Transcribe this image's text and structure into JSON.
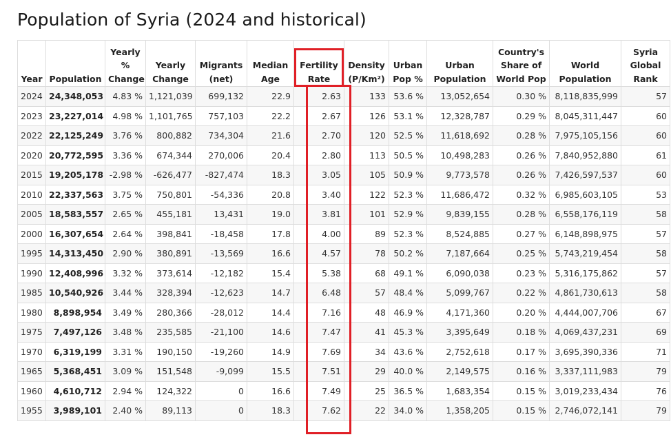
{
  "page": {
    "title": "Population of Syria (2024 and historical)"
  },
  "table": {
    "columns": [
      "Year",
      "Population",
      "Yearly\n%\nChange",
      "Yearly\nChange",
      "Migrants\n(net)",
      "Median\nAge",
      "Fertility\nRate",
      "Density\n(P/Km²)",
      "Urban\nPop %",
      "Urban\nPopulation",
      "Country's\nShare of\nWorld Pop",
      "World\nPopulation",
      "Syria\nGlobal\nRank"
    ],
    "rows": [
      [
        "2024",
        "24,348,053",
        "4.83 %",
        "1,121,039",
        "699,132",
        "22.9",
        "2.63",
        "133",
        "53.6 %",
        "13,052,654",
        "0.30 %",
        "8,118,835,999",
        "57"
      ],
      [
        "2023",
        "23,227,014",
        "4.98 %",
        "1,101,765",
        "757,103",
        "22.2",
        "2.67",
        "126",
        "53.1 %",
        "12,328,787",
        "0.29 %",
        "8,045,311,447",
        "60"
      ],
      [
        "2022",
        "22,125,249",
        "3.76 %",
        "800,882",
        "734,304",
        "21.6",
        "2.70",
        "120",
        "52.5 %",
        "11,618,692",
        "0.28 %",
        "7,975,105,156",
        "60"
      ],
      [
        "2020",
        "20,772,595",
        "3.36 %",
        "674,344",
        "270,006",
        "20.4",
        "2.80",
        "113",
        "50.5 %",
        "10,498,283",
        "0.26 %",
        "7,840,952,880",
        "61"
      ],
      [
        "2015",
        "19,205,178",
        "-2.98 %",
        "-626,477",
        "-827,474",
        "18.3",
        "3.05",
        "105",
        "50.9 %",
        "9,773,578",
        "0.26 %",
        "7,426,597,537",
        "60"
      ],
      [
        "2010",
        "22,337,563",
        "3.75 %",
        "750,801",
        "-54,336",
        "20.8",
        "3.40",
        "122",
        "52.3 %",
        "11,686,472",
        "0.32 %",
        "6,985,603,105",
        "53"
      ],
      [
        "2005",
        "18,583,557",
        "2.65 %",
        "455,181",
        "13,431",
        "19.0",
        "3.81",
        "101",
        "52.9 %",
        "9,839,155",
        "0.28 %",
        "6,558,176,119",
        "58"
      ],
      [
        "2000",
        "16,307,654",
        "2.64 %",
        "398,841",
        "-18,458",
        "17.8",
        "4.00",
        "89",
        "52.3 %",
        "8,524,885",
        "0.27 %",
        "6,148,898,975",
        "57"
      ],
      [
        "1995",
        "14,313,450",
        "2.90 %",
        "380,891",
        "-13,569",
        "16.6",
        "4.57",
        "78",
        "50.2 %",
        "7,187,664",
        "0.25 %",
        "5,743,219,454",
        "58"
      ],
      [
        "1990",
        "12,408,996",
        "3.32 %",
        "373,614",
        "-12,182",
        "15.4",
        "5.38",
        "68",
        "49.1 %",
        "6,090,038",
        "0.23 %",
        "5,316,175,862",
        "57"
      ],
      [
        "1985",
        "10,540,926",
        "3.44 %",
        "328,394",
        "-12,623",
        "14.7",
        "6.48",
        "57",
        "48.4 %",
        "5,099,767",
        "0.22 %",
        "4,861,730,613",
        "58"
      ],
      [
        "1980",
        "8,898,954",
        "3.49 %",
        "280,366",
        "-28,012",
        "14.4",
        "7.16",
        "48",
        "46.9 %",
        "4,171,360",
        "0.20 %",
        "4,444,007,706",
        "67"
      ],
      [
        "1975",
        "7,497,126",
        "3.48 %",
        "235,585",
        "-21,100",
        "14.6",
        "7.47",
        "41",
        "45.3 %",
        "3,395,649",
        "0.18 %",
        "4,069,437,231",
        "69"
      ],
      [
        "1970",
        "6,319,199",
        "3.31 %",
        "190,150",
        "-19,260",
        "14.9",
        "7.69",
        "34",
        "43.6 %",
        "2,752,618",
        "0.17 %",
        "3,695,390,336",
        "71"
      ],
      [
        "1965",
        "5,368,451",
        "3.09 %",
        "151,548",
        "-9,099",
        "15.5",
        "7.51",
        "29",
        "40.0 %",
        "2,149,575",
        "0.16 %",
        "3,337,111,983",
        "79"
      ],
      [
        "1960",
        "4,610,712",
        "2.94 %",
        "124,322",
        "0",
        "16.6",
        "7.49",
        "25",
        "36.5 %",
        "1,683,354",
        "0.15 %",
        "3,019,233,434",
        "76"
      ],
      [
        "1955",
        "3,989,101",
        "2.40 %",
        "89,113",
        "0",
        "18.3",
        "7.62",
        "22",
        "34.0 %",
        "1,358,205",
        "0.15 %",
        "2,746,072,141",
        "79"
      ]
    ]
  },
  "highlight": {
    "column": "Fertility Rate",
    "color": "#e01f26"
  }
}
